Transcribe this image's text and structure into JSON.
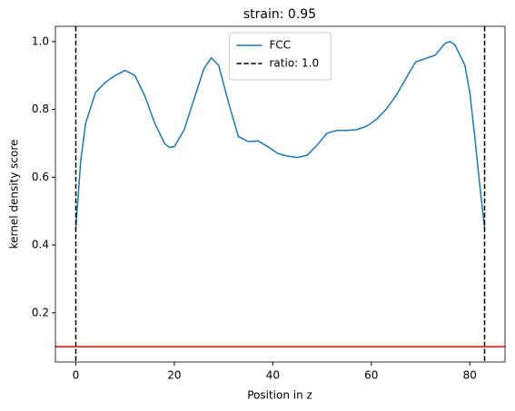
{
  "chart_data": {
    "type": "line",
    "title": "strain: 0.95",
    "xlabel": "Position in z",
    "ylabel": "kernel density score",
    "x": [
      0,
      1,
      2,
      4,
      6,
      8,
      10,
      12,
      14,
      16,
      18,
      19,
      20,
      22,
      24,
      26,
      27.5,
      29,
      31,
      33,
      35,
      37,
      39,
      41,
      43,
      45,
      47,
      49,
      51,
      53,
      55,
      57,
      59,
      61,
      63,
      65,
      67,
      69,
      71,
      73,
      75,
      76,
      77,
      79,
      80,
      81,
      82,
      83
    ],
    "series": [
      {
        "name": "FCC",
        "color": "#1f77b4",
        "values": [
          0.45,
          0.65,
          0.76,
          0.85,
          0.88,
          0.9,
          0.915,
          0.9,
          0.84,
          0.76,
          0.7,
          0.688,
          0.69,
          0.74,
          0.83,
          0.92,
          0.952,
          0.93,
          0.82,
          0.72,
          0.705,
          0.707,
          0.69,
          0.67,
          0.662,
          0.658,
          0.665,
          0.695,
          0.73,
          0.738,
          0.738,
          0.74,
          0.75,
          0.77,
          0.8,
          0.84,
          0.89,
          0.94,
          0.95,
          0.96,
          0.995,
          1.0,
          0.99,
          0.93,
          0.85,
          0.72,
          0.58,
          0.45
        ]
      }
    ],
    "vlines": {
      "name": "ratio: 1.0",
      "color": "#000000",
      "x": [
        0,
        83
      ]
    },
    "hline": {
      "value": 0.1,
      "color": "#ff0000"
    },
    "xlim": [
      -4.15,
      87.15
    ],
    "ylim": [
      0.055,
      1.045
    ],
    "xticks": [
      0,
      20,
      40,
      60,
      80
    ],
    "yticks": [
      0.2,
      0.4,
      0.6,
      0.8,
      {
        "value": 1,
        "label": "1.0"
      }
    ],
    "legend": "upper center"
  }
}
